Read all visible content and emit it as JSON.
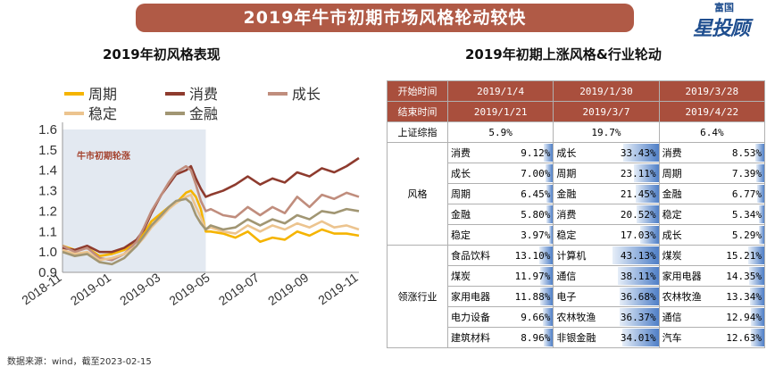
{
  "banner": {
    "title": "2019年牛市初期市场风格轮动较快"
  },
  "logo": {
    "top": "富国",
    "main": "星投顾"
  },
  "left": {
    "title": "2019年初风格表现",
    "source": "数据来源：wind，截至2023-02-15"
  },
  "right": {
    "title": "2019年初期上涨风格&行业轮动"
  },
  "chart_data": {
    "type": "line",
    "title": "2019年初风格表现",
    "xlabel": "",
    "ylabel": "",
    "ylim": [
      0.9,
      1.6
    ],
    "xlim": [
      0,
      12
    ],
    "yticks": [
      "0.9",
      "1.0",
      "1.1",
      "1.2",
      "1.3",
      "1.4",
      "1.5",
      "1.6"
    ],
    "ytick_values": [
      0.9,
      1.0,
      1.1,
      1.2,
      1.3,
      1.4,
      1.5,
      1.6
    ],
    "xticks": [
      "2018-11",
      "2019-01",
      "2019-03",
      "2019-05",
      "2019-07",
      "2019-09",
      "2019-11"
    ],
    "xtick_values": [
      0,
      2,
      4,
      6,
      8,
      10,
      12
    ],
    "shade": {
      "from": 0,
      "to": 5.8,
      "label": "牛市初期轮涨"
    },
    "series": [
      {
        "name": "周期",
        "color": "#f5b400",
        "x": [
          0,
          0.5,
          1,
          1.5,
          2,
          2.5,
          3,
          3.3,
          3.6,
          4,
          4.3,
          4.6,
          5,
          5.2,
          5.4,
          5.6,
          5.8,
          6,
          6.5,
          7,
          7.5,
          8,
          8.5,
          9,
          9.5,
          10,
          10.5,
          11,
          11.5,
          12
        ],
        "values": [
          1.03,
          1.01,
          1.02,
          0.98,
          0.99,
          1.01,
          1.05,
          1.09,
          1.15,
          1.19,
          1.22,
          1.24,
          1.29,
          1.3,
          1.27,
          1.21,
          1.1,
          1.1,
          1.09,
          1.07,
          1.1,
          1.05,
          1.07,
          1.06,
          1.1,
          1.08,
          1.11,
          1.09,
          1.09,
          1.08
        ]
      },
      {
        "name": "消费",
        "color": "#8e3b2e",
        "x": [
          0,
          0.5,
          1,
          1.5,
          2,
          2.5,
          3,
          3.3,
          3.6,
          4,
          4.3,
          4.6,
          5,
          5.2,
          5.4,
          5.6,
          5.8,
          6,
          6.5,
          7,
          7.5,
          8,
          8.5,
          9,
          9.5,
          10,
          10.5,
          11,
          11.5,
          12
        ],
        "values": [
          1.02,
          1.01,
          1.03,
          1.0,
          1.0,
          1.02,
          1.06,
          1.11,
          1.19,
          1.28,
          1.33,
          1.38,
          1.4,
          1.42,
          1.36,
          1.31,
          1.27,
          1.28,
          1.3,
          1.33,
          1.37,
          1.33,
          1.36,
          1.34,
          1.39,
          1.37,
          1.41,
          1.39,
          1.42,
          1.46
        ]
      },
      {
        "name": "成长",
        "color": "#c08d7d",
        "x": [
          0,
          0.5,
          1,
          1.5,
          2,
          2.5,
          3,
          3.3,
          3.6,
          4,
          4.3,
          4.6,
          5,
          5.2,
          5.4,
          5.6,
          5.8,
          6,
          6.5,
          7,
          7.5,
          8,
          8.5,
          9,
          9.5,
          10,
          10.5,
          11,
          11.5,
          12
        ],
        "values": [
          1.03,
          1.0,
          1.02,
          0.97,
          0.96,
          0.99,
          1.05,
          1.12,
          1.2,
          1.28,
          1.34,
          1.39,
          1.42,
          1.4,
          1.33,
          1.25,
          1.2,
          1.21,
          1.18,
          1.17,
          1.22,
          1.18,
          1.22,
          1.19,
          1.27,
          1.22,
          1.28,
          1.26,
          1.29,
          1.27
        ]
      },
      {
        "name": "稳定",
        "color": "#ecc48f",
        "x": [
          0,
          0.5,
          1,
          1.5,
          2,
          2.5,
          3,
          3.3,
          3.6,
          4,
          4.3,
          4.6,
          5,
          5.2,
          5.4,
          5.6,
          5.8,
          6,
          6.5,
          7,
          7.5,
          8,
          8.5,
          9,
          9.5,
          10,
          10.5,
          11,
          11.5,
          12
        ],
        "values": [
          1.01,
          0.99,
          1.0,
          0.96,
          0.97,
          0.99,
          1.03,
          1.07,
          1.12,
          1.17,
          1.21,
          1.24,
          1.27,
          1.28,
          1.22,
          1.17,
          1.11,
          1.12,
          1.1,
          1.09,
          1.13,
          1.1,
          1.13,
          1.11,
          1.14,
          1.12,
          1.15,
          1.12,
          1.13,
          1.11
        ]
      },
      {
        "name": "金融",
        "color": "#a19673",
        "x": [
          0,
          0.5,
          1,
          1.5,
          2,
          2.5,
          3,
          3.3,
          3.6,
          4,
          4.3,
          4.6,
          5,
          5.2,
          5.4,
          5.6,
          5.8,
          6,
          6.5,
          7,
          7.5,
          8,
          8.5,
          9,
          9.5,
          10,
          10.5,
          11,
          11.5,
          12
        ],
        "values": [
          1.0,
          0.98,
          0.99,
          0.95,
          0.94,
          0.97,
          1.03,
          1.08,
          1.13,
          1.18,
          1.22,
          1.25,
          1.26,
          1.24,
          1.18,
          1.14,
          1.11,
          1.13,
          1.11,
          1.12,
          1.16,
          1.13,
          1.16,
          1.14,
          1.18,
          1.16,
          1.2,
          1.19,
          1.21,
          1.2
        ]
      }
    ]
  },
  "table": {
    "header_rows": [
      {
        "label": "开始时间",
        "cols": [
          "2019/1/4",
          "2019/1/30",
          "2019/3/28"
        ]
      },
      {
        "label": "结束时间",
        "cols": [
          "2019/1/21",
          "2019/3/7",
          "2019/4/22"
        ]
      }
    ],
    "index_row": {
      "label": "上证综指",
      "cols": [
        "5.9%",
        "19.7%",
        "6.4%"
      ]
    },
    "style_group": {
      "label": "风格",
      "rows": [
        [
          {
            "n": "消费",
            "v": "9.12%",
            "p": 9.12
          },
          {
            "n": "成长",
            "v": "33.43%",
            "p": 33.43
          },
          {
            "n": "消费",
            "v": "8.53%",
            "p": 8.53
          }
        ],
        [
          {
            "n": "成长",
            "v": "7.00%",
            "p": 7.0
          },
          {
            "n": "周期",
            "v": "23.11%",
            "p": 23.11
          },
          {
            "n": "周期",
            "v": "7.39%",
            "p": 7.39
          }
        ],
        [
          {
            "n": "周期",
            "v": "6.45%",
            "p": 6.45
          },
          {
            "n": "金融",
            "v": "21.45%",
            "p": 21.45
          },
          {
            "n": "金融",
            "v": "6.77%",
            "p": 6.77
          }
        ],
        [
          {
            "n": "金融",
            "v": "5.80%",
            "p": 5.8
          },
          {
            "n": "消费",
            "v": "20.52%",
            "p": 20.52
          },
          {
            "n": "稳定",
            "v": "5.34%",
            "p": 5.34
          }
        ],
        [
          {
            "n": "稳定",
            "v": "3.97%",
            "p": 3.97
          },
          {
            "n": "稳定",
            "v": "17.03%",
            "p": 17.03
          },
          {
            "n": "成长",
            "v": "5.29%",
            "p": 5.29
          }
        ]
      ]
    },
    "industry_group": {
      "label": "领涨行业",
      "rows": [
        [
          {
            "n": "食品饮料",
            "v": "13.10%",
            "p": 13.1
          },
          {
            "n": "计算机",
            "v": "43.13%",
            "p": 43.13
          },
          {
            "n": "煤炭",
            "v": "15.21%",
            "p": 15.21
          }
        ],
        [
          {
            "n": "煤炭",
            "v": "11.97%",
            "p": 11.97
          },
          {
            "n": "通信",
            "v": "38.11%",
            "p": 38.11
          },
          {
            "n": "家用电器",
            "v": "14.35%",
            "p": 14.35
          }
        ],
        [
          {
            "n": "家用电器",
            "v": "11.88%",
            "p": 11.88
          },
          {
            "n": "电子",
            "v": "36.68%",
            "p": 36.68
          },
          {
            "n": "农林牧渔",
            "v": "13.34%",
            "p": 13.34
          }
        ],
        [
          {
            "n": "电力设备",
            "v": "9.66%",
            "p": 9.66
          },
          {
            "n": "农林牧渔",
            "v": "36.37%",
            "p": 36.37
          },
          {
            "n": "通信",
            "v": "12.94%",
            "p": 12.94
          }
        ],
        [
          {
            "n": "建筑材料",
            "v": "8.96%",
            "p": 8.96
          },
          {
            "n": "非银金融",
            "v": "34.01%",
            "p": 34.01
          },
          {
            "n": "汽车",
            "v": "12.63%",
            "p": 12.63
          }
        ]
      ]
    }
  }
}
